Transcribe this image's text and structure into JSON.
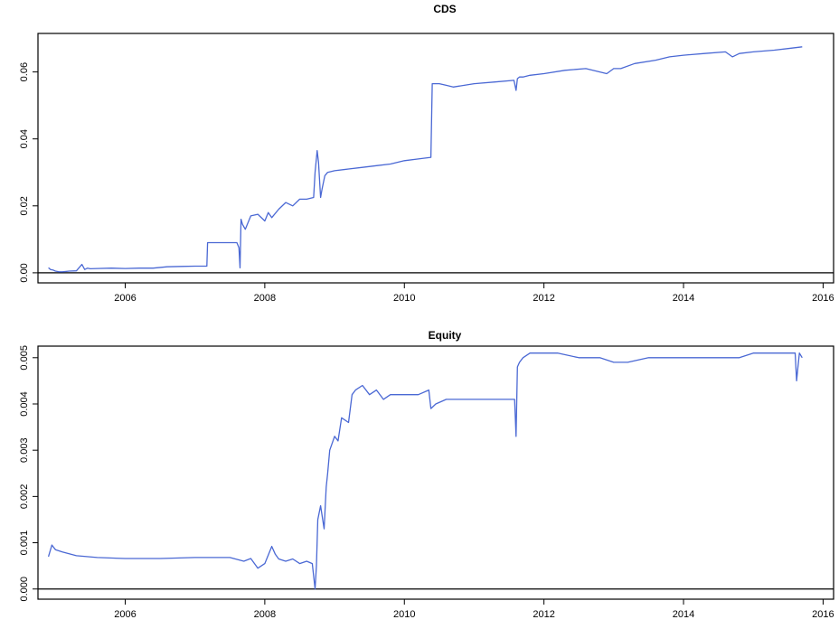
{
  "chart_data": [
    {
      "type": "line",
      "title": "CDS",
      "xlabel": "",
      "ylabel": "",
      "xlim": [
        2004.75,
        2016.15
      ],
      "ylim": [
        -0.003,
        0.0715
      ],
      "x_ticks": [
        2006,
        2008,
        2010,
        2012,
        2014,
        2016
      ],
      "y_ticks": [
        0.0,
        0.02,
        0.04,
        0.06
      ],
      "y_tick_labels": [
        "0.00",
        "0.02",
        "0.04",
        "0.06"
      ],
      "reference_line": 0,
      "grid": false,
      "color": "#4a68d4",
      "series": [
        {
          "x": [
            2004.9,
            2004.93,
            2004.97,
            2005.0,
            2005.05,
            2005.1,
            2005.2,
            2005.3,
            2005.38,
            2005.42,
            2005.46,
            2005.5,
            2005.6,
            2005.8,
            2006.0,
            2006.2,
            2006.4,
            2006.6,
            2006.8,
            2007.0,
            2007.17,
            2007.18,
            2007.3,
            2007.5,
            2007.6,
            2007.63,
            2007.645,
            2007.66,
            2007.68,
            2007.72,
            2007.8,
            2007.9,
            2008.0,
            2008.05,
            2008.1,
            2008.2,
            2008.3,
            2008.4,
            2008.5,
            2008.6,
            2008.7,
            2008.72,
            2008.75,
            2008.77,
            2008.8,
            2008.82,
            2008.86,
            2008.9,
            2009.0,
            2009.2,
            2009.4,
            2009.6,
            2009.8,
            2010.0,
            2010.2,
            2010.38,
            2010.4,
            2010.5,
            2010.6,
            2010.7,
            2011.0,
            2011.3,
            2011.57,
            2011.6,
            2011.62,
            2011.65,
            2011.7,
            2011.8,
            2012.0,
            2012.3,
            2012.6,
            2012.9,
            2013.0,
            2013.1,
            2013.3,
            2013.6,
            2013.8,
            2014.0,
            2014.3,
            2014.6,
            2014.7,
            2014.8,
            2015.0,
            2015.3,
            2015.5,
            2015.7
          ],
          "values": [
            0.0015,
            0.001,
            0.0008,
            0.0005,
            0.0003,
            0.0003,
            0.0005,
            0.0006,
            0.0025,
            0.001,
            0.0014,
            0.0012,
            0.0013,
            0.0014,
            0.0013,
            0.0014,
            0.0014,
            0.0018,
            0.0019,
            0.002,
            0.002,
            0.009,
            0.009,
            0.009,
            0.009,
            0.0075,
            0.0015,
            0.016,
            0.0145,
            0.013,
            0.017,
            0.0175,
            0.0155,
            0.018,
            0.0165,
            0.019,
            0.021,
            0.02,
            0.022,
            0.022,
            0.0225,
            0.03,
            0.0365,
            0.033,
            0.0225,
            0.025,
            0.029,
            0.03,
            0.0305,
            0.031,
            0.0315,
            0.032,
            0.0325,
            0.0335,
            0.034,
            0.0345,
            0.0565,
            0.0565,
            0.056,
            0.0555,
            0.0565,
            0.057,
            0.0575,
            0.0545,
            0.058,
            0.0585,
            0.0585,
            0.059,
            0.0595,
            0.0605,
            0.061,
            0.0595,
            0.061,
            0.061,
            0.0625,
            0.0635,
            0.0645,
            0.065,
            0.0655,
            0.066,
            0.0645,
            0.0655,
            0.066,
            0.0665,
            0.067,
            0.0675
          ]
        }
      ]
    },
    {
      "type": "line",
      "title": "Equity",
      "xlabel": "",
      "ylabel": "",
      "xlim": [
        2004.75,
        2016.15
      ],
      "ylim": [
        -0.00022,
        0.00525
      ],
      "x_ticks": [
        2006,
        2008,
        2010,
        2012,
        2014,
        2016
      ],
      "y_ticks": [
        0.0,
        0.001,
        0.002,
        0.003,
        0.004,
        0.005
      ],
      "y_tick_labels": [
        "0.000",
        "0.001",
        "0.002",
        "0.003",
        "0.004",
        "0.005"
      ],
      "reference_line": 0,
      "grid": false,
      "color": "#4a68d4",
      "series": [
        {
          "x": [
            2004.9,
            2004.95,
            2005.0,
            2005.1,
            2005.3,
            2005.6,
            2006.0,
            2006.5,
            2007.0,
            2007.5,
            2007.7,
            2007.8,
            2007.9,
            2008.0,
            2008.1,
            2008.15,
            2008.2,
            2008.3,
            2008.4,
            2008.5,
            2008.6,
            2008.68,
            2008.72,
            2008.74,
            2008.76,
            2008.8,
            2008.85,
            2008.88,
            2008.9,
            2008.93,
            2009.0,
            2009.05,
            2009.1,
            2009.2,
            2009.25,
            2009.3,
            2009.4,
            2009.5,
            2009.6,
            2009.7,
            2009.8,
            2010.0,
            2010.2,
            2010.35,
            2010.38,
            2010.45,
            2010.6,
            2010.8,
            2011.0,
            2011.2,
            2011.4,
            2011.58,
            2011.6,
            2011.62,
            2011.65,
            2011.7,
            2011.8,
            2012.0,
            2012.2,
            2012.5,
            2012.8,
            2013.0,
            2013.2,
            2013.5,
            2013.8,
            2014.0,
            2014.3,
            2014.6,
            2014.8,
            2015.0,
            2015.1,
            2015.3,
            2015.5,
            2015.6,
            2015.62,
            2015.64,
            2015.66,
            2015.7
          ],
          "values": [
            0.0007,
            0.00095,
            0.00085,
            0.0008,
            0.00072,
            0.00068,
            0.00066,
            0.00066,
            0.00068,
            0.00068,
            0.0006,
            0.00066,
            0.00045,
            0.00055,
            0.00092,
            0.00075,
            0.00065,
            0.0006,
            0.00065,
            0.00055,
            0.0006,
            0.00055,
            0.0,
            0.0005,
            0.0015,
            0.0018,
            0.0013,
            0.0022,
            0.0025,
            0.003,
            0.0033,
            0.0032,
            0.0037,
            0.0036,
            0.0042,
            0.0043,
            0.0044,
            0.0042,
            0.0043,
            0.0041,
            0.0042,
            0.0042,
            0.0042,
            0.0043,
            0.0039,
            0.004,
            0.0041,
            0.0041,
            0.0041,
            0.0041,
            0.0041,
            0.0041,
            0.0033,
            0.0048,
            0.0049,
            0.005,
            0.0051,
            0.0051,
            0.0051,
            0.005,
            0.005,
            0.0049,
            0.0049,
            0.005,
            0.005,
            0.005,
            0.005,
            0.005,
            0.005,
            0.0051,
            0.0051,
            0.0051,
            0.0051,
            0.0051,
            0.0045,
            0.0048,
            0.0051,
            0.005
          ]
        }
      ]
    }
  ]
}
